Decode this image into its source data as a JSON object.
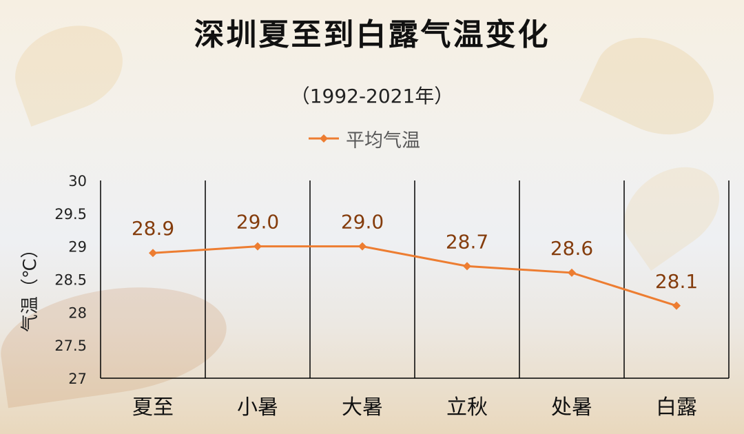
{
  "title": "深圳夏至到白露气温变化",
  "subtitle": "（1992-2021年）",
  "chart_data": {
    "type": "line",
    "title": "深圳夏至到白露气温变化",
    "subtitle": "（1992-2021年）",
    "categories": [
      "夏至",
      "小暑",
      "大暑",
      "立秋",
      "处暑",
      "白露"
    ],
    "series": [
      {
        "name": "平均气温",
        "values": [
          28.9,
          29.0,
          29.0,
          28.7,
          28.6,
          28.1
        ],
        "labels": [
          "28.9",
          "29.0",
          "29.0",
          "28.7",
          "28.6",
          "28.1"
        ],
        "color": "#ed7d31",
        "label_color": "#843c0c",
        "marker": "diamond"
      }
    ],
    "ylabel": "气温（℃）",
    "ylim": [
      27,
      30
    ],
    "yticks": [
      "30",
      "29.5",
      "29",
      "28.5",
      "28",
      "27.5",
      "27"
    ],
    "legend": "top",
    "gridlines": "vertical category separators"
  }
}
